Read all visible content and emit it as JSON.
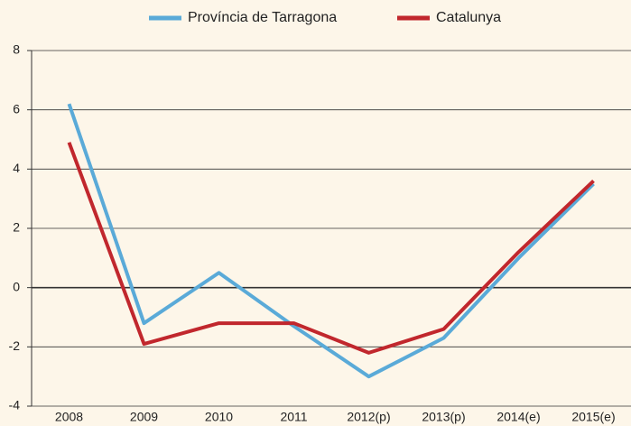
{
  "chart_data": {
    "type": "line",
    "categories": [
      "2008",
      "2009",
      "2010",
      "2011",
      "2012(p)",
      "2013(p)",
      "2014(e)",
      "2015(e)"
    ],
    "series": [
      {
        "name": "Província de Tarragona",
        "color": "#5aaad8",
        "values": [
          6.2,
          -1.2,
          0.5,
          -1.3,
          -3.0,
          -1.7,
          1.0,
          3.5
        ]
      },
      {
        "name": "Catalunya",
        "color": "#c1272d",
        "values": [
          4.9,
          -1.9,
          -1.2,
          -1.2,
          -2.2,
          -1.4,
          1.2,
          3.6
        ]
      }
    ],
    "ylim": [
      -4,
      8
    ],
    "yticks": [
      -4,
      -2,
      0,
      2,
      4,
      6,
      8
    ],
    "grid": true,
    "legend": "top"
  }
}
